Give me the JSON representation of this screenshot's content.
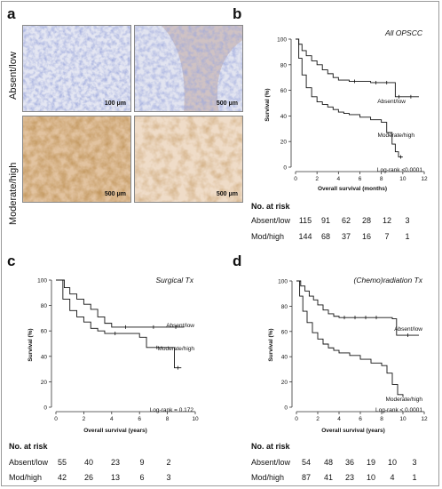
{
  "panel_a": {
    "label": "a",
    "row_labels": [
      "Absent/low",
      "Moderate/high"
    ],
    "scale_bars": [
      "100 μm",
      "500 μm",
      "500 μm",
      "500 μm"
    ]
  },
  "panel_b": {
    "label": "b"
  },
  "panel_c": {
    "label": "c"
  },
  "panel_d": {
    "label": "d"
  },
  "chart_data": [
    {
      "id": "b",
      "type": "line",
      "title": "All OPSCC",
      "xlabel": "Overall survival (months)",
      "ylabel": "Survival (%)",
      "xlim": [
        0,
        12
      ],
      "ylim": [
        0,
        100
      ],
      "xticks": [
        "0",
        "2",
        "4",
        "6",
        "8",
        "10",
        "12"
      ],
      "yticks": [
        "0",
        "20",
        "40",
        "60",
        "80",
        "100"
      ],
      "annotation": "Log-rank <0.0001",
      "series": [
        {
          "name": "Absent/low",
          "x": [
            0,
            0.3,
            0.6,
            1.0,
            1.5,
            2.0,
            2.5,
            3.0,
            3.5,
            4.0,
            5.0,
            6.0,
            7.0,
            8.0,
            9.0,
            9.3,
            10.0,
            11.5
          ],
          "y": [
            100,
            96,
            91,
            87,
            83,
            80,
            76,
            73,
            70,
            68,
            67,
            67,
            66,
            66,
            66,
            55,
            55,
            55
          ]
        },
        {
          "name": "Moderate/high",
          "x": [
            0,
            0.3,
            0.6,
            1.0,
            1.5,
            2.0,
            2.5,
            3.0,
            3.5,
            4.0,
            4.5,
            5.0,
            6.0,
            7.0,
            8.0,
            8.5,
            9.0,
            9.3,
            9.6,
            10.0
          ],
          "y": [
            100,
            85,
            72,
            62,
            55,
            51,
            49,
            47,
            45,
            43,
            42,
            41,
            39,
            37,
            35,
            27,
            18,
            12,
            8,
            8
          ]
        }
      ],
      "risk_table": {
        "title": "No. at risk",
        "rows": [
          {
            "label": "Absent/low",
            "values": [
              "115",
              "91",
              "62",
              "28",
              "12",
              "3"
            ]
          },
          {
            "label": "Mod/high",
            "values": [
              "144",
              "68",
              "37",
              "16",
              "7",
              "1"
            ]
          }
        ]
      }
    },
    {
      "id": "c",
      "type": "line",
      "title": "Surgical Tx",
      "xlabel": "Overall survival (years)",
      "ylabel": "Survival (%)",
      "xlim": [
        0,
        10
      ],
      "ylim": [
        0,
        100
      ],
      "xticks": [
        "0",
        "2",
        "4",
        "6",
        "8",
        "10"
      ],
      "yticks": [
        "0",
        "20",
        "40",
        "60",
        "80",
        "100"
      ],
      "annotation": "Log-rank = 0.172",
      "series": [
        {
          "name": "Absent/low",
          "x": [
            0,
            0.6,
            1.0,
            1.5,
            2.0,
            2.5,
            3.0,
            3.5,
            4.0,
            6.0,
            8.0,
            9.2
          ],
          "y": [
            100,
            94,
            89,
            85,
            81,
            77,
            71,
            66,
            63,
            63,
            63,
            63
          ]
        },
        {
          "name": "Moderate/high",
          "x": [
            0,
            0.5,
            1.0,
            1.5,
            2.0,
            2.5,
            3.0,
            3.5,
            5.0,
            6.0,
            6.5,
            8.0,
            8.5,
            9.0
          ],
          "y": [
            100,
            85,
            76,
            71,
            67,
            62,
            60,
            58,
            58,
            55,
            47,
            47,
            31,
            31
          ]
        }
      ],
      "risk_table": {
        "title": "No. at risk",
        "rows": [
          {
            "label": "Absent/low",
            "values": [
              "55",
              "40",
              "23",
              "9",
              "2"
            ]
          },
          {
            "label": "Mod/high",
            "values": [
              "42",
              "26",
              "13",
              "6",
              "3"
            ]
          }
        ]
      }
    },
    {
      "id": "d",
      "type": "line",
      "title": "(Chemo)radiation Tx",
      "xlabel": "Overall survival (years)",
      "ylabel": "Survival (%)",
      "xlim": [
        0,
        12
      ],
      "ylim": [
        0,
        100
      ],
      "xticks": [
        "0",
        "2",
        "4",
        "6",
        "8",
        "10",
        "12"
      ],
      "yticks": [
        "0",
        "20",
        "40",
        "60",
        "80",
        "100"
      ],
      "annotation": "Log-rank < 0.0001",
      "series": [
        {
          "name": "Absent/low",
          "x": [
            0,
            0.4,
            0.8,
            1.2,
            1.6,
            2.0,
            2.5,
            3.0,
            3.5,
            4.0,
            5.0,
            6.0,
            7.0,
            8.0,
            9.0,
            9.4,
            11.5
          ],
          "y": [
            100,
            96,
            92,
            88,
            85,
            81,
            77,
            74,
            72,
            71,
            71,
            71,
            71,
            71,
            70,
            57,
            57
          ]
        },
        {
          "name": "Moderate/high",
          "x": [
            0,
            0.3,
            0.6,
            1.0,
            1.5,
            2.0,
            2.5,
            3.0,
            3.5,
            4.0,
            5.0,
            6.0,
            7.0,
            8.0,
            8.5,
            9.0,
            9.5,
            10.0
          ],
          "y": [
            100,
            88,
            76,
            67,
            59,
            54,
            50,
            47,
            45,
            43,
            41,
            38,
            35,
            33,
            27,
            18,
            10,
            8
          ]
        }
      ],
      "risk_table": {
        "title": "No. at risk",
        "rows": [
          {
            "label": "Absent/low",
            "values": [
              "54",
              "48",
              "36",
              "19",
              "10",
              "3"
            ]
          },
          {
            "label": "Mod/high",
            "values": [
              "87",
              "41",
              "23",
              "10",
              "4",
              "1"
            ]
          }
        ]
      }
    }
  ],
  "colors": {
    "curve": "#111111",
    "stain_low": "#8a96c8",
    "stain_high": "#c58a55"
  }
}
